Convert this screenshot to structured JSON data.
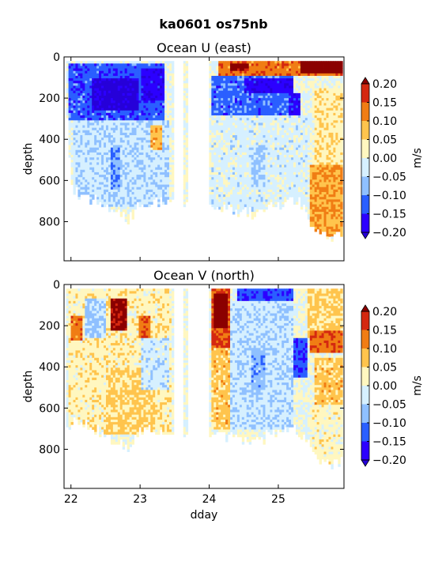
{
  "suptitle": "ka0601 os75nb",
  "colors": {
    "levels": [
      "#2c00ff",
      "#2a5fff",
      "#8fc0ff",
      "#d6f0ff",
      "#fff7c0",
      "#ffc44d",
      "#f07d14",
      "#d42810"
    ],
    "under": "#2600d9",
    "over": "#8b0000"
  },
  "chart_data": [
    {
      "type": "heatmap",
      "title": "Ocean U (east)",
      "xlabel": "",
      "ylabel": "depth",
      "xlim": [
        21.9,
        25.95
      ],
      "ylim": [
        990,
        0
      ],
      "xticks": [
        22,
        23,
        24,
        25
      ],
      "xticklabels": [
        "",
        "",
        "",
        ""
      ],
      "yticks": [
        0,
        200,
        400,
        600,
        800
      ],
      "yticklabels": [
        "0",
        "200",
        "400",
        "600",
        "800"
      ],
      "colorbar": {
        "label": "m/s",
        "ticks": [
          0.2,
          0.15,
          0.1,
          0.05,
          0.0,
          -0.05,
          -0.1,
          -0.15,
          -0.2
        ],
        "ticklabels": [
          "0.20",
          "0.15",
          "0.10",
          "0.05",
          "0.00",
          "−0.05",
          "−0.10",
          "−0.15",
          "−0.20"
        ],
        "levels": [
          -0.2,
          -0.15,
          -0.1,
          -0.05,
          0.0,
          0.05,
          0.1,
          0.15,
          0.2
        ],
        "extend": "both"
      },
      "data_gaps_dday": [
        [
          23.47,
          23.6
        ],
        [
          23.68,
          23.98
        ]
      ],
      "max_depth_by_dday": [
        [
          21.92,
          220
        ],
        [
          22.0,
          650
        ],
        [
          22.2,
          670
        ],
        [
          22.5,
          720
        ],
        [
          22.8,
          790
        ],
        [
          23.0,
          700
        ],
        [
          23.3,
          700
        ],
        [
          23.45,
          700
        ],
        [
          24.0,
          720
        ],
        [
          24.3,
          730
        ],
        [
          24.6,
          760
        ],
        [
          24.9,
          720
        ],
        [
          25.2,
          690
        ],
        [
          25.35,
          720
        ],
        [
          25.5,
          820
        ],
        [
          25.7,
          870
        ],
        [
          25.9,
          850
        ]
      ],
      "regions": [
        {
          "x": [
            21.95,
            23.35
          ],
          "y": [
            30,
            300
          ],
          "value": -0.13
        },
        {
          "x": [
            22.3,
            22.95
          ],
          "y": [
            100,
            250
          ],
          "value": -0.22
        },
        {
          "x": [
            23.0,
            23.35
          ],
          "y": [
            50,
            200
          ],
          "value": -0.18
        },
        {
          "x": [
            22.0,
            23.4
          ],
          "y": [
            300,
            720
          ],
          "value": -0.04
        },
        {
          "x": [
            22.55,
            22.7
          ],
          "y": [
            430,
            640
          ],
          "value": -0.09
        },
        {
          "x": [
            23.15,
            23.3
          ],
          "y": [
            330,
            440
          ],
          "value": 0.08
        },
        {
          "x": [
            21.93,
            21.96
          ],
          "y": [
            300,
            600
          ],
          "value": 0.12
        },
        {
          "x": [
            24.1,
            25.9
          ],
          "y": [
            20,
            90
          ],
          "value": 0.13
        },
        {
          "x": [
            24.3,
            24.55
          ],
          "y": [
            30,
            60
          ],
          "value": 0.22
        },
        {
          "x": [
            25.3,
            25.9
          ],
          "y": [
            20,
            70
          ],
          "value": 0.25
        },
        {
          "x": [
            24.0,
            25.2
          ],
          "y": [
            90,
            280
          ],
          "value": -0.12
        },
        {
          "x": [
            24.5,
            25.2
          ],
          "y": [
            100,
            170
          ],
          "value": -0.18
        },
        {
          "x": [
            25.15,
            25.3
          ],
          "y": [
            170,
            300
          ],
          "value": -0.17
        },
        {
          "x": [
            24.0,
            25.4
          ],
          "y": [
            280,
            760
          ],
          "value": -0.02
        },
        {
          "x": [
            24.6,
            24.8
          ],
          "y": [
            420,
            620
          ],
          "value": -0.06
        },
        {
          "x": [
            25.5,
            25.9
          ],
          "y": [
            150,
            520
          ],
          "value": 0.04
        },
        {
          "x": [
            25.45,
            25.9
          ],
          "y": [
            520,
            870
          ],
          "value": 0.1
        }
      ]
    },
    {
      "type": "heatmap",
      "title": "Ocean V (north)",
      "xlabel": "dday",
      "ylabel": "depth",
      "xlim": [
        21.9,
        25.95
      ],
      "ylim": [
        990,
        0
      ],
      "xticks": [
        22,
        23,
        24,
        25
      ],
      "xticklabels": [
        "22",
        "23",
        "24",
        "25"
      ],
      "yticks": [
        0,
        200,
        400,
        600,
        800
      ],
      "yticklabels": [
        "0",
        "200",
        "400",
        "600",
        "800"
      ],
      "colorbar": {
        "label": "m/s",
        "ticks": [
          0.2,
          0.15,
          0.1,
          0.05,
          0.0,
          -0.05,
          -0.1,
          -0.15,
          -0.2
        ],
        "ticklabels": [
          "0.20",
          "0.15",
          "0.10",
          "0.05",
          "0.00",
          "−0.05",
          "−0.10",
          "−0.15",
          "−0.20"
        ],
        "levels": [
          -0.2,
          -0.15,
          -0.1,
          -0.05,
          0.0,
          0.05,
          0.1,
          0.15,
          0.2
        ],
        "extend": "both"
      },
      "data_gaps_dday": [
        [
          23.47,
          23.6
        ],
        [
          23.68,
          23.98
        ]
      ],
      "max_depth_by_dday": [
        [
          21.92,
          720
        ],
        [
          22.0,
          650
        ],
        [
          22.2,
          670
        ],
        [
          22.5,
          720
        ],
        [
          22.8,
          790
        ],
        [
          23.0,
          700
        ],
        [
          23.3,
          700
        ],
        [
          23.45,
          700
        ],
        [
          24.0,
          720
        ],
        [
          24.3,
          730
        ],
        [
          24.6,
          760
        ],
        [
          24.9,
          720
        ],
        [
          25.2,
          690
        ],
        [
          25.35,
          720
        ],
        [
          25.5,
          820
        ],
        [
          25.7,
          870
        ],
        [
          25.9,
          850
        ]
      ],
      "regions": [
        {
          "x": [
            21.95,
            23.45
          ],
          "y": [
            20,
            720
          ],
          "value": 0.03
        },
        {
          "x": [
            22.2,
            22.5
          ],
          "y": [
            60,
            250
          ],
          "value": -0.06
        },
        {
          "x": [
            22.5,
            23.2
          ],
          "y": [
            400,
            720
          ],
          "value": 0.06
        },
        {
          "x": [
            22.55,
            22.78
          ],
          "y": [
            60,
            220
          ],
          "value": 0.22
        },
        {
          "x": [
            22.95,
            23.15
          ],
          "y": [
            150,
            250
          ],
          "value": 0.14
        },
        {
          "x": [
            21.98,
            22.15
          ],
          "y": [
            150,
            270
          ],
          "value": 0.13
        },
        {
          "x": [
            23.0,
            23.4
          ],
          "y": [
            250,
            500
          ],
          "value": -0.03
        },
        {
          "x": [
            24.0,
            24.3
          ],
          "y": [
            20,
            300
          ],
          "value": 0.16
        },
        {
          "x": [
            24.05,
            24.25
          ],
          "y": [
            40,
            200
          ],
          "value": 0.24
        },
        {
          "x": [
            24.0,
            24.3
          ],
          "y": [
            300,
            700
          ],
          "value": 0.07
        },
        {
          "x": [
            24.4,
            25.2
          ],
          "y": [
            20,
            80
          ],
          "value": -0.14
        },
        {
          "x": [
            24.3,
            25.2
          ],
          "y": [
            80,
            700
          ],
          "value": -0.04
        },
        {
          "x": [
            24.6,
            24.8
          ],
          "y": [
            300,
            500
          ],
          "value": -0.08
        },
        {
          "x": [
            25.2,
            25.4
          ],
          "y": [
            250,
            450
          ],
          "value": -0.14
        },
        {
          "x": [
            25.4,
            25.9
          ],
          "y": [
            20,
            250
          ],
          "value": 0.06
        },
        {
          "x": [
            25.45,
            25.9
          ],
          "y": [
            220,
            330
          ],
          "value": 0.14
        },
        {
          "x": [
            25.5,
            25.9
          ],
          "y": [
            350,
            580
          ],
          "value": 0.07
        },
        {
          "x": [
            25.45,
            25.9
          ],
          "y": [
            580,
            870
          ],
          "value": 0.02
        }
      ]
    }
  ]
}
